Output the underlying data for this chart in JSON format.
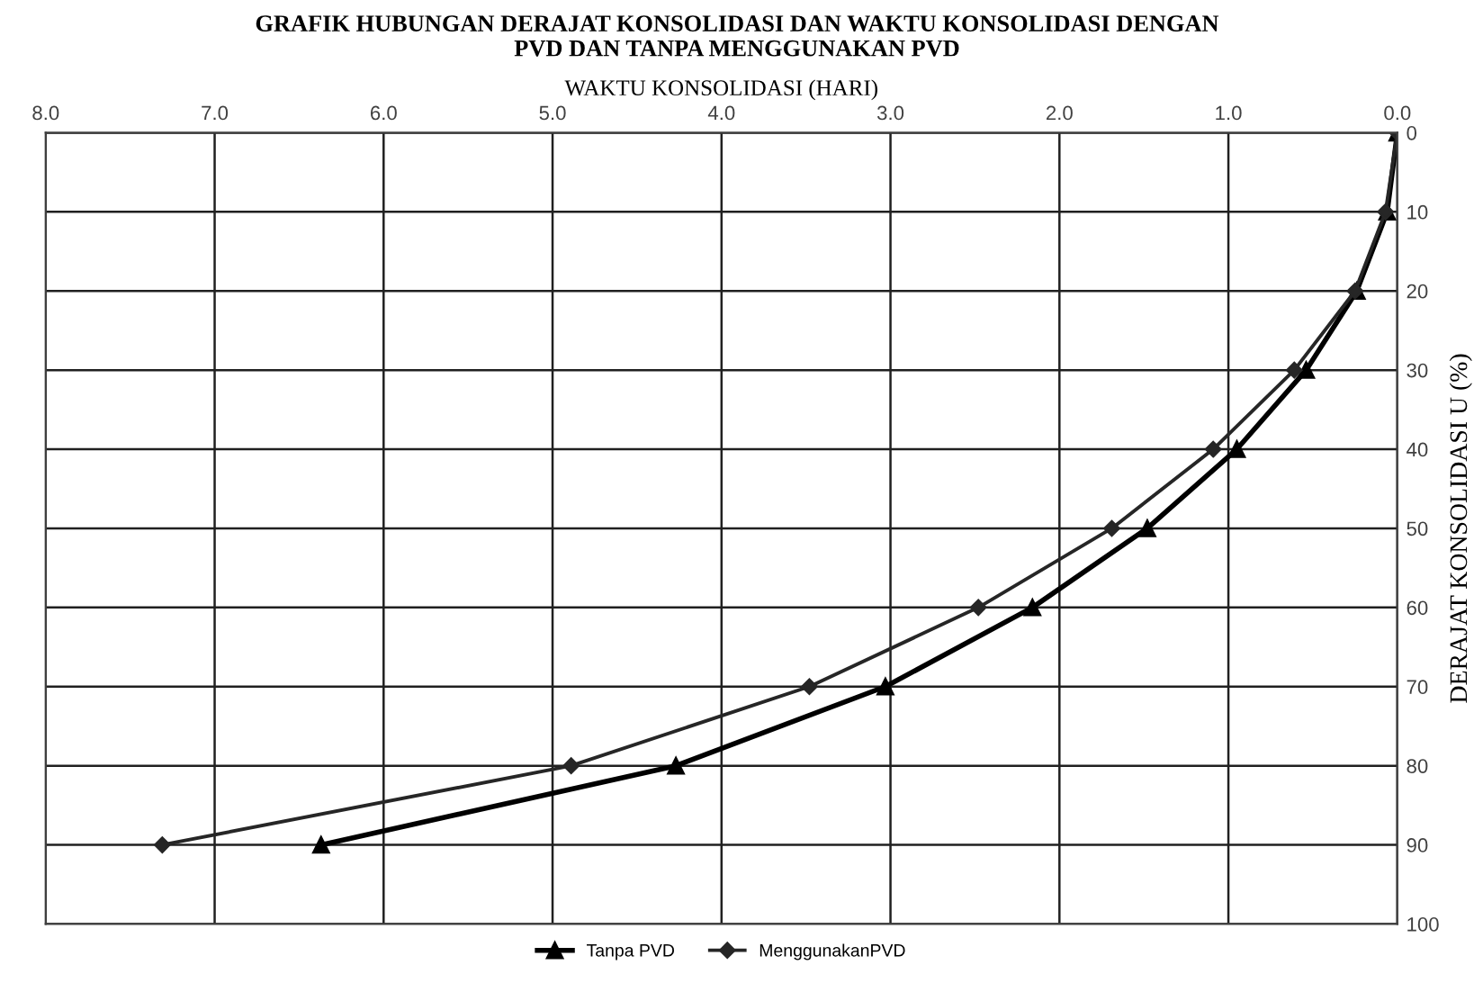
{
  "chart_data": {
    "type": "line",
    "title": "GRAFIK HUBUNGAN DERAJAT KONSOLIDASI DAN WAKTU KONSOLIDASI DENGAN\nPVD DAN TANPA MENGGUNAKAN PVD",
    "xlabel": "WAKTU KONSOLIDASI (HARI)",
    "ylabel": "DERAJAT KONSOLIDASI U (%)",
    "xlim": [
      8.0,
      0.0
    ],
    "xticks": [
      {
        "value": 8,
        "label": "8.0"
      },
      {
        "value": 7,
        "label": "7.0"
      },
      {
        "value": 6,
        "label": "6.0"
      },
      {
        "value": 5,
        "label": "5.0"
      },
      {
        "value": 4,
        "label": "4.0"
      },
      {
        "value": 3,
        "label": "3.0"
      },
      {
        "value": 2,
        "label": "2.0"
      },
      {
        "value": 1,
        "label": "1.0"
      },
      {
        "value": 0,
        "label": "0.0"
      }
    ],
    "ylim": [
      100,
      0
    ],
    "yticks": [
      0,
      10,
      20,
      30,
      40,
      50,
      60,
      70,
      80,
      90,
      100
    ],
    "grid": true,
    "legend": "bottom",
    "series": [
      {
        "name": "Tanpa PVD",
        "color": "#000000",
        "marker": "triangle",
        "x": [
          0.0,
          0.06,
          0.24,
          0.54,
          0.95,
          1.48,
          2.16,
          3.03,
          4.27,
          6.37
        ],
        "values": [
          0,
          10,
          20,
          30,
          40,
          50,
          60,
          70,
          80,
          90
        ]
      },
      {
        "name": "MenggunakanPVD",
        "color": "#262626",
        "marker": "diamond",
        "x": [
          0.0,
          0.07,
          0.25,
          0.61,
          1.09,
          1.69,
          2.48,
          3.48,
          4.89,
          7.31
        ],
        "values": [
          0,
          10,
          20,
          30,
          40,
          50,
          60,
          70,
          80,
          90
        ]
      }
    ]
  }
}
